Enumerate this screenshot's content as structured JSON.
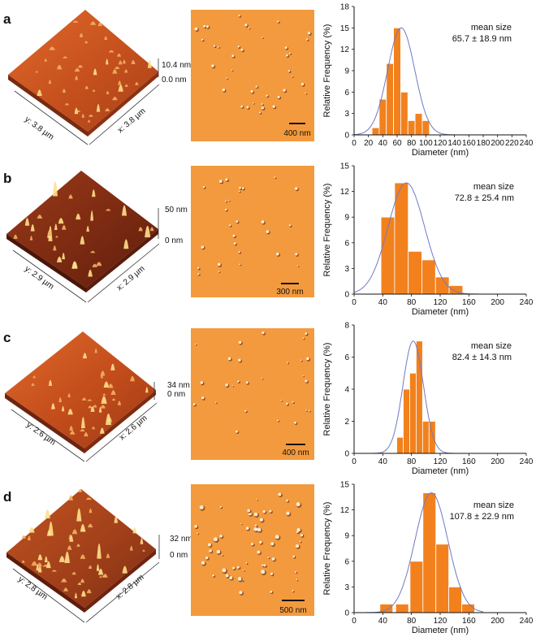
{
  "panels": [
    {
      "label": "a",
      "surface": {
        "x_label": "x: 3.8 µm",
        "y_label": "y: 3.8 µm",
        "z_top": "10.4 nm",
        "z_bottom": "0.0 nm"
      },
      "afm_image": {
        "scalebar": "400 nm"
      },
      "annotation_line1": "mean size",
      "annotation_line2": "65.7 ± 18.9 nm"
    },
    {
      "label": "b",
      "surface": {
        "x_label": "x: 2.9 µm",
        "y_label": "y: 2.9 µm",
        "z_top": "50 nm",
        "z_bottom": "0 nm"
      },
      "afm_image": {
        "scalebar": "300 nm"
      },
      "annotation_line1": "mean size",
      "annotation_line2": "72.8 ± 25.4 nm"
    },
    {
      "label": "c",
      "surface": {
        "x_label": "x: 2.6 µm",
        "y_label": "y: 2.6 µm",
        "z_top": "34 nm",
        "z_bottom": "0 nm"
      },
      "afm_image": {
        "scalebar": "400 nm"
      },
      "annotation_line1": "mean size",
      "annotation_line2": "82.4 ± 14.3 nm"
    },
    {
      "label": "d",
      "surface": {
        "x_label": "x: 2.8 µm",
        "y_label": "y: 2.8 µm",
        "z_top": "32 nm",
        "z_bottom": "0 nm"
      },
      "afm_image": {
        "scalebar": "500 nm"
      },
      "annotation_line1": "mean size",
      "annotation_line2": "107.8 ± 22.9 nm"
    }
  ],
  "colors": {
    "bar": "#f2811d",
    "bar_edge": "#ffffff",
    "fit": "#6f79c7",
    "afm_bg": "#f39a3e",
    "surface_base": "#c8501a",
    "surface_dark": "#6b2412",
    "peak": "#ffe08a"
  },
  "chart_data": [
    {
      "type": "bar",
      "xlabel": "Diameter (nm)",
      "ylabel": "Relative Frequency (%)",
      "xlim": [
        0,
        240
      ],
      "ylim": [
        0,
        18
      ],
      "x_ticks": [
        "0",
        "20",
        "40",
        "60",
        "80",
        "100",
        "120",
        "140",
        "160",
        "180",
        "200",
        "220",
        "240"
      ],
      "y_ticks": [
        "0",
        "3",
        "6",
        "9",
        "12",
        "15",
        "18"
      ],
      "bin_width": 10,
      "bin_centers": [
        30,
        40,
        50,
        60,
        70,
        80,
        90,
        100
      ],
      "values": [
        1,
        5,
        10,
        15,
        6,
        2,
        3,
        2
      ],
      "fit": {
        "mean": 65.7,
        "sd": 18.9,
        "peak": 15
      }
    },
    {
      "type": "bar",
      "xlabel": "Diameter (nm)",
      "ylabel": "Relative Frequency (%)",
      "xlim": [
        0,
        240
      ],
      "ylim": [
        0,
        15
      ],
      "x_ticks": [
        "0",
        "40",
        "80",
        "120",
        "160",
        "200",
        "240"
      ],
      "y_ticks": [
        "0",
        "3",
        "6",
        "9",
        "12",
        "15"
      ],
      "bin_width": 19,
      "bin_centers": [
        47,
        66,
        85,
        104,
        123,
        142
      ],
      "values": [
        9,
        13,
        5,
        4,
        2,
        1
      ],
      "fit": {
        "mean": 72.8,
        "sd": 25.4,
        "peak": 13
      }
    },
    {
      "type": "bar",
      "xlabel": "Diameter (nm)",
      "ylabel": "Relative Frequency (%)",
      "xlim": [
        0,
        240
      ],
      "ylim": [
        0,
        8
      ],
      "x_ticks": [
        "0",
        "40",
        "80",
        "120",
        "160",
        "200",
        "240"
      ],
      "y_ticks": [
        "0",
        "2",
        "4",
        "6",
        "8"
      ],
      "bin_width": 9,
      "bin_centers": [
        64,
        73,
        82,
        91,
        100
      ],
      "values": [
        1,
        4,
        5,
        7,
        2
      ],
      "extra_bars": [
        {
          "center": 109,
          "value": 2
        }
      ],
      "fit": {
        "mean": 82.4,
        "sd": 14.3,
        "peak": 7
      }
    },
    {
      "type": "bar",
      "xlabel": "Diameter (nm)",
      "ylabel": "Relative Frequency (%)",
      "xlim": [
        0,
        240
      ],
      "ylim": [
        0,
        15
      ],
      "x_ticks": [
        "0",
        "40",
        "80",
        "120",
        "160",
        "200",
        "240"
      ],
      "y_ticks": [
        "0",
        "3",
        "6",
        "9",
        "12",
        "15"
      ],
      "bin_width": 18,
      "bin_centers": [
        45,
        67,
        87,
        105,
        123,
        141,
        159
      ],
      "values": [
        1,
        1,
        6,
        14,
        8,
        3,
        1
      ],
      "fit": {
        "mean": 107.8,
        "sd": 22.9,
        "peak": 14
      }
    }
  ]
}
